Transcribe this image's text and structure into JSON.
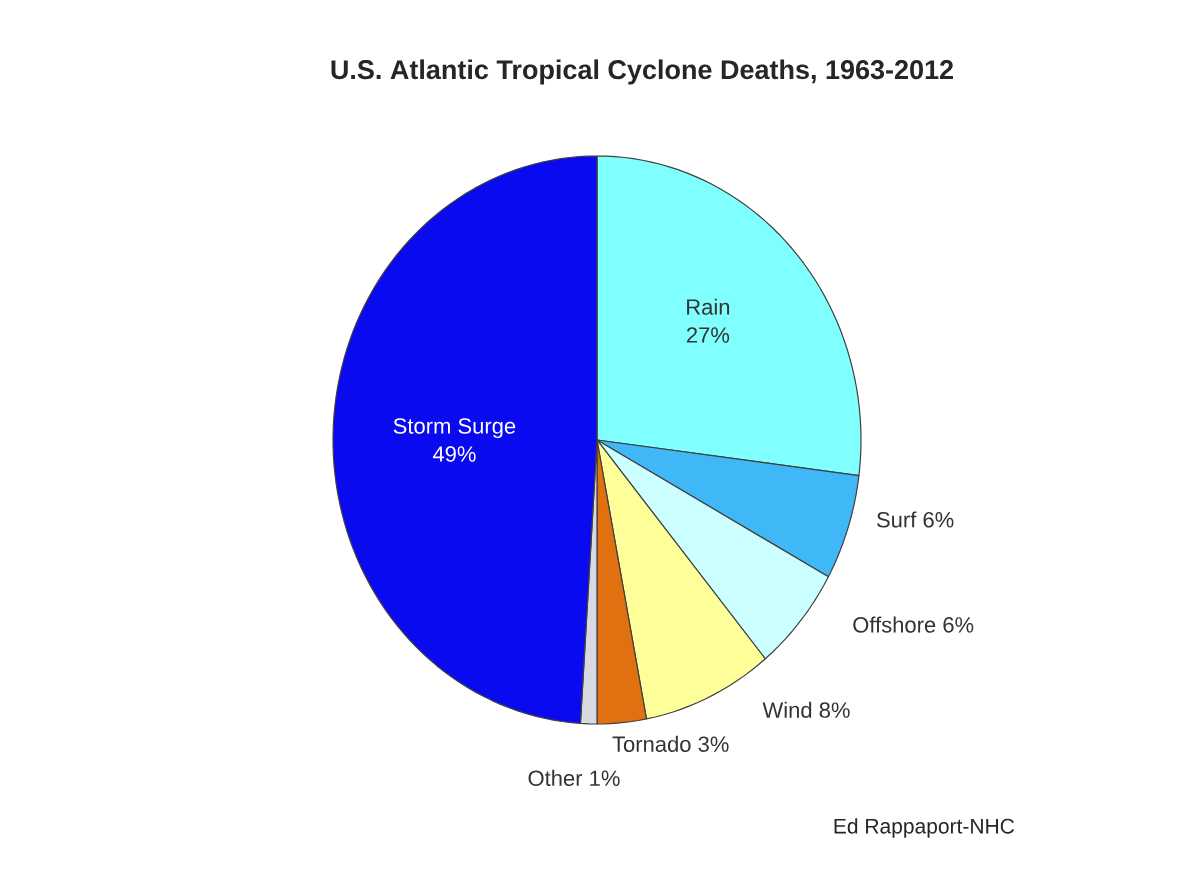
{
  "chart_data": {
    "type": "pie",
    "title": "U.S. Atlantic Tropical Cyclone Deaths,  1963-2012",
    "categories": [
      "Rain",
      "Surf",
      "Offshore",
      "Wind",
      "Tornado",
      "Other",
      "Storm Surge"
    ],
    "values": [
      27,
      6,
      6,
      8,
      3,
      1,
      49
    ],
    "colors": [
      "#80ffff",
      "#40b8f8",
      "#ccffff",
      "#ffff99",
      "#e07010",
      "#d8d8e0",
      "#0a0af0"
    ],
    "value_labels": [
      "27%",
      "6%",
      "6%",
      "8%",
      "3%",
      "1%",
      "49%"
    ],
    "annotations": [
      "Ed Rappaport-NHC"
    ]
  }
}
